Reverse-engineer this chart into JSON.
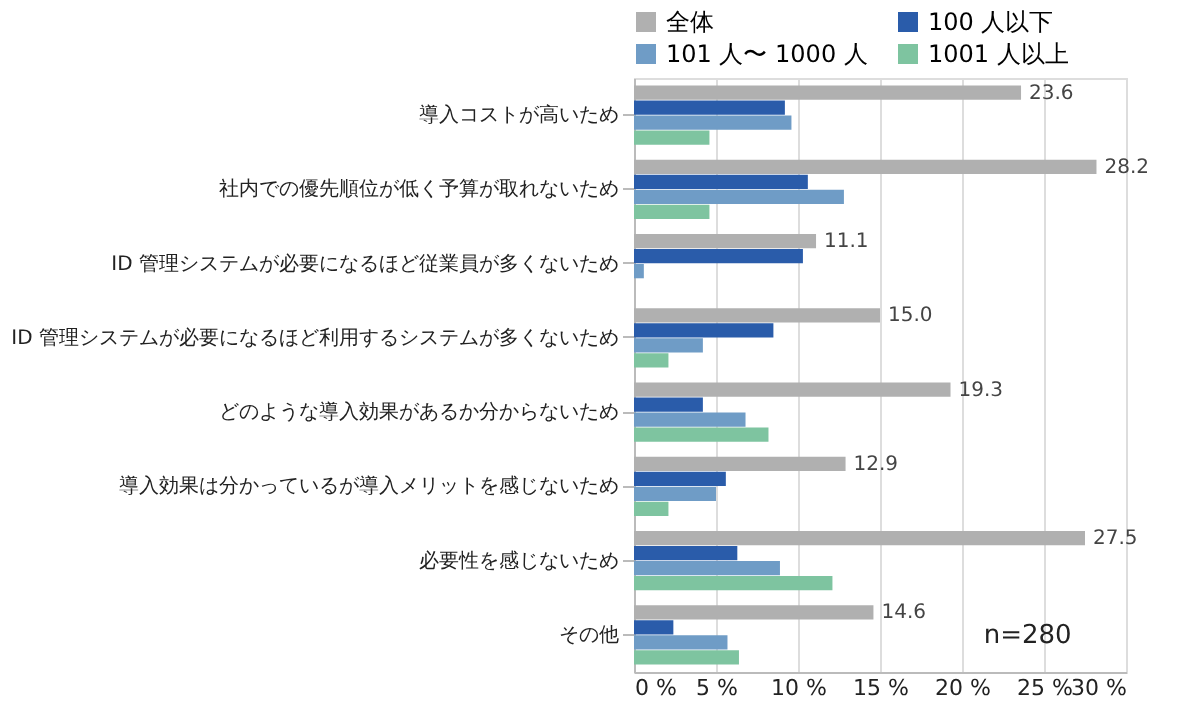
{
  "chart_data": {
    "type": "bar",
    "orientation": "horizontal",
    "categories": [
      "導入コストが高いため",
      "社内での優先順位が低く予算が取れないため",
      "ID 管理システムが必要になるほど従業員が多くないため",
      "ID 管理システムが必要になるほど利用するシステムが多くないため",
      "どのような導入効果があるか分からないため",
      "導入効果は分かっているが導入メリットを感じないため",
      "必要性を感じないため",
      "その他"
    ],
    "series": [
      {
        "name": "全体",
        "color": "#b0b0b0",
        "values": [
          23.6,
          28.2,
          11.1,
          15.0,
          19.3,
          12.9,
          27.5,
          14.6
        ],
        "value_labels": [
          "23.6",
          "28.2",
          "11.1",
          "15.0",
          "19.3",
          "12.9",
          "27.5",
          "14.6"
        ]
      },
      {
        "name": "100 人以下",
        "color": "#2a5caa",
        "values": [
          9.2,
          10.6,
          10.3,
          8.5,
          4.2,
          5.6,
          6.3,
          2.4
        ]
      },
      {
        "name": "101 人〜 1000 人",
        "color": "#6f9cc6",
        "values": [
          9.6,
          12.8,
          0.6,
          4.2,
          6.8,
          5.0,
          8.9,
          5.7
        ]
      },
      {
        "name": "1001 人以上",
        "color": "#7ec4a0",
        "values": [
          4.6,
          4.6,
          0,
          2.1,
          8.2,
          2.1,
          12.1,
          6.4
        ]
      }
    ],
    "xlim": [
      0,
      30
    ],
    "xticks": [
      {
        "value": 0,
        "label": "0 %"
      },
      {
        "value": 5,
        "label": "5 %"
      },
      {
        "value": 10,
        "label": "10 %"
      },
      {
        "value": 15,
        "label": "15 %"
      },
      {
        "value": 20,
        "label": "20 %"
      },
      {
        "value": 25,
        "label": "25 %"
      },
      {
        "value": 30,
        "label": "30 %"
      }
    ],
    "grid": "x",
    "legend": "top",
    "annotations": [
      "n=280"
    ]
  }
}
